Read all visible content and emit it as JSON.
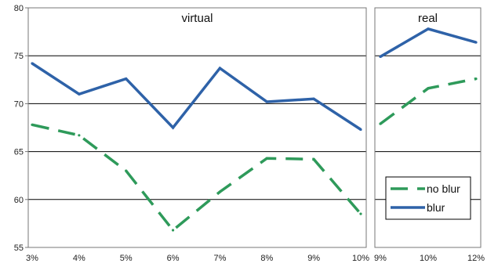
{
  "chart_data": [
    {
      "type": "line",
      "title": "virtual",
      "categories": [
        "3%",
        "4%",
        "5%",
        "6%",
        "7%",
        "8%",
        "9%",
        "10%"
      ],
      "series": [
        {
          "name": "no blur",
          "values": [
            67.8,
            66.7,
            63.0,
            56.8,
            60.8,
            64.3,
            64.2,
            58.5
          ],
          "color": "#2e9a5a",
          "dash": "dashed"
        },
        {
          "name": "blur",
          "values": [
            74.2,
            71.0,
            72.6,
            67.5,
            73.7,
            70.2,
            70.5,
            67.3
          ],
          "color": "#2e62a8",
          "dash": "solid"
        }
      ],
      "ylim": [
        55,
        80
      ],
      "yticks": [
        55,
        60,
        65,
        70,
        75,
        80
      ],
      "grid": "horizontal"
    },
    {
      "type": "line",
      "title": "real",
      "categories": [
        "9%",
        "10%",
        "12%"
      ],
      "series": [
        {
          "name": "no blur",
          "values": [
            67.9,
            71.6,
            72.6
          ],
          "color": "#2e9a5a",
          "dash": "dashed"
        },
        {
          "name": "blur",
          "values": [
            74.9,
            77.8,
            76.4
          ],
          "color": "#2e62a8",
          "dash": "solid"
        }
      ],
      "ylim": [
        55,
        80
      ],
      "grid": "horizontal",
      "legend_position": "bottom-right"
    }
  ]
}
